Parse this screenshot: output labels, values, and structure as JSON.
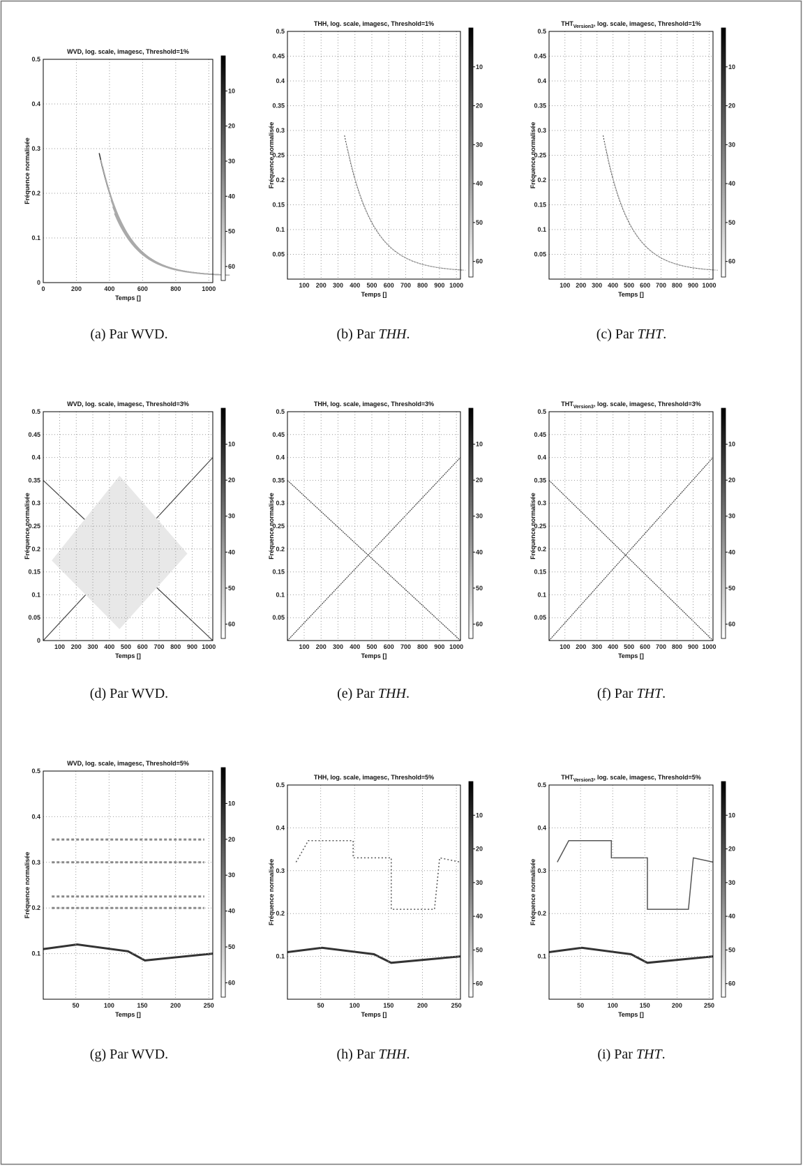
{
  "panels": [
    {
      "title": {
        "main": "WVD, log. scale, imagesc, Threshold=1%"
      },
      "xlabel": "Temps []",
      "ylabel": "Fréquence normalisée",
      "xlim": [
        0,
        1024
      ],
      "xticks": [
        0,
        200,
        400,
        600,
        800,
        1000
      ],
      "ylim": [
        0,
        0.5
      ],
      "yticks": [
        0,
        0.1,
        0.2,
        0.3,
        0.4,
        0.5
      ],
      "colorbar_lim": [
        0,
        64
      ],
      "colorbar_ticks": [
        10,
        20,
        30,
        40,
        50,
        60
      ],
      "caption": [
        {
          "text": "(a) Par WVD."
        }
      ]
    },
    {
      "title": {
        "main": "THH, log. scale, imagesc, Threshold=1%"
      },
      "xlabel": "Temps []",
      "ylabel": "Fréquence normalisée",
      "xlim": [
        1,
        1024
      ],
      "xticks": [
        100,
        200,
        300,
        400,
        500,
        600,
        700,
        800,
        900,
        1000
      ],
      "ylim": [
        0,
        0.5
      ],
      "yticks": [
        0.05,
        0.1,
        0.15,
        0.2,
        0.25,
        0.3,
        0.35,
        0.4,
        0.45,
        0.5
      ],
      "colorbar_lim": [
        0,
        64
      ],
      "colorbar_ticks": [
        10,
        20,
        30,
        40,
        50,
        60
      ],
      "caption": [
        {
          "text": "(b) Par "
        },
        {
          "text": "THH",
          "italic": true
        },
        {
          "text": "."
        }
      ]
    },
    {
      "title": {
        "main": "THT",
        "sub": "Version3",
        "rest": ", log. scale, imagesc, Threshold=1%"
      },
      "xlabel": "Temps []",
      "ylabel": "Fréquence normalisée",
      "xlim": [
        1,
        1024
      ],
      "xticks": [
        100,
        200,
        300,
        400,
        500,
        600,
        700,
        800,
        900,
        1000
      ],
      "ylim": [
        0,
        0.5
      ],
      "yticks": [
        0.05,
        0.1,
        0.15,
        0.2,
        0.25,
        0.3,
        0.35,
        0.4,
        0.45,
        0.5
      ],
      "colorbar_lim": [
        0,
        64
      ],
      "colorbar_ticks": [
        10,
        20,
        30,
        40,
        50,
        60
      ],
      "caption": [
        {
          "text": "(c) Par "
        },
        {
          "text": "THT",
          "italic": true
        },
        {
          "text": "."
        }
      ]
    },
    {
      "title": {
        "main": "WVD, log. scale, imagesc, Threshold=3%"
      },
      "xlabel": "Temps []",
      "ylabel": "Fréquence normalisée",
      "xlim": [
        1,
        1024
      ],
      "xticks": [
        100,
        200,
        300,
        400,
        500,
        600,
        700,
        800,
        900,
        1000
      ],
      "ylim": [
        0,
        0.5
      ],
      "yticks": [
        0,
        0.05,
        0.1,
        0.15,
        0.2,
        0.25,
        0.3,
        0.35,
        0.4,
        0.45,
        0.5
      ],
      "colorbar_lim": [
        0,
        64
      ],
      "colorbar_ticks": [
        10,
        20,
        30,
        40,
        50,
        60
      ],
      "caption": [
        {
          "text": "(d) Par WVD."
        }
      ]
    },
    {
      "title": {
        "main": "THH, log. scale, imagesc, Threshold=3%"
      },
      "xlabel": "Temps []",
      "ylabel": "Fréquence normalisée",
      "xlim": [
        1,
        1024
      ],
      "xticks": [
        100,
        200,
        300,
        400,
        500,
        600,
        700,
        800,
        900,
        1000
      ],
      "ylim": [
        0,
        0.5
      ],
      "yticks": [
        0.05,
        0.1,
        0.15,
        0.2,
        0.25,
        0.3,
        0.35,
        0.4,
        0.45,
        0.5
      ],
      "colorbar_lim": [
        0,
        64
      ],
      "colorbar_ticks": [
        10,
        20,
        30,
        40,
        50,
        60
      ],
      "caption": [
        {
          "text": "(e) Par "
        },
        {
          "text": "THH",
          "italic": true
        },
        {
          "text": "."
        }
      ]
    },
    {
      "title": {
        "main": "THT",
        "sub": "Version3",
        "rest": ", log. scale, imagesc, Threshold=3%"
      },
      "xlabel": "Temps []",
      "ylabel": "Fréquence normalisée",
      "xlim": [
        1,
        1024
      ],
      "xticks": [
        100,
        200,
        300,
        400,
        500,
        600,
        700,
        800,
        900,
        1000
      ],
      "ylim": [
        0,
        0.5
      ],
      "yticks": [
        0.05,
        0.1,
        0.15,
        0.2,
        0.25,
        0.3,
        0.35,
        0.4,
        0.45,
        0.5
      ],
      "colorbar_lim": [
        0,
        64
      ],
      "colorbar_ticks": [
        10,
        20,
        30,
        40,
        50,
        60
      ],
      "caption": [
        {
          "text": "(f) Par "
        },
        {
          "text": "THT",
          "italic": true
        },
        {
          "text": "."
        }
      ]
    },
    {
      "title": {
        "main": "WVD, log. scale, imagesc, Threshold=5%"
      },
      "xlabel": "Temps []",
      "ylabel": "Fréquence normalisée",
      "xlim": [
        1,
        256
      ],
      "xticks": [
        50,
        100,
        150,
        200,
        250
      ],
      "ylim": [
        0,
        0.5
      ],
      "yticks": [
        0.1,
        0.2,
        0.3,
        0.4,
        0.5
      ],
      "colorbar_lim": [
        0,
        64
      ],
      "colorbar_ticks": [
        10,
        20,
        30,
        40,
        50,
        60
      ],
      "caption": [
        {
          "text": "(g) Par WVD."
        }
      ]
    },
    {
      "title": {
        "main": "THH, log. scale, imagesc, Threshold=5%"
      },
      "xlabel": "Temps []",
      "ylabel": "Fréquence normalisée",
      "xlim": [
        1,
        256
      ],
      "xticks": [
        50,
        100,
        150,
        200,
        250
      ],
      "ylim": [
        0,
        0.5
      ],
      "yticks": [
        0.1,
        0.2,
        0.3,
        0.4,
        0.5
      ],
      "colorbar_lim": [
        0,
        64
      ],
      "colorbar_ticks": [
        10,
        20,
        30,
        40,
        50,
        60
      ],
      "caption": [
        {
          "text": "(h) Par "
        },
        {
          "text": "THH",
          "italic": true
        },
        {
          "text": "."
        }
      ]
    },
    {
      "title": {
        "main": "THT",
        "sub": "Version3",
        "rest": ", log. scale, imagesc, Threshold=5%"
      },
      "xlabel": "Temps []",
      "ylabel": "Fréquence normalisée",
      "xlim": [
        1,
        256
      ],
      "xticks": [
        50,
        100,
        150,
        200,
        250
      ],
      "ylim": [
        0,
        0.5
      ],
      "yticks": [
        0.1,
        0.2,
        0.3,
        0.4,
        0.5
      ],
      "colorbar_lim": [
        0,
        64
      ],
      "colorbar_ticks": [
        10,
        20,
        30,
        40,
        50,
        60
      ],
      "caption": [
        {
          "text": "(i) Par "
        },
        {
          "text": "THT",
          "italic": true
        },
        {
          "text": "."
        }
      ]
    }
  ]
}
